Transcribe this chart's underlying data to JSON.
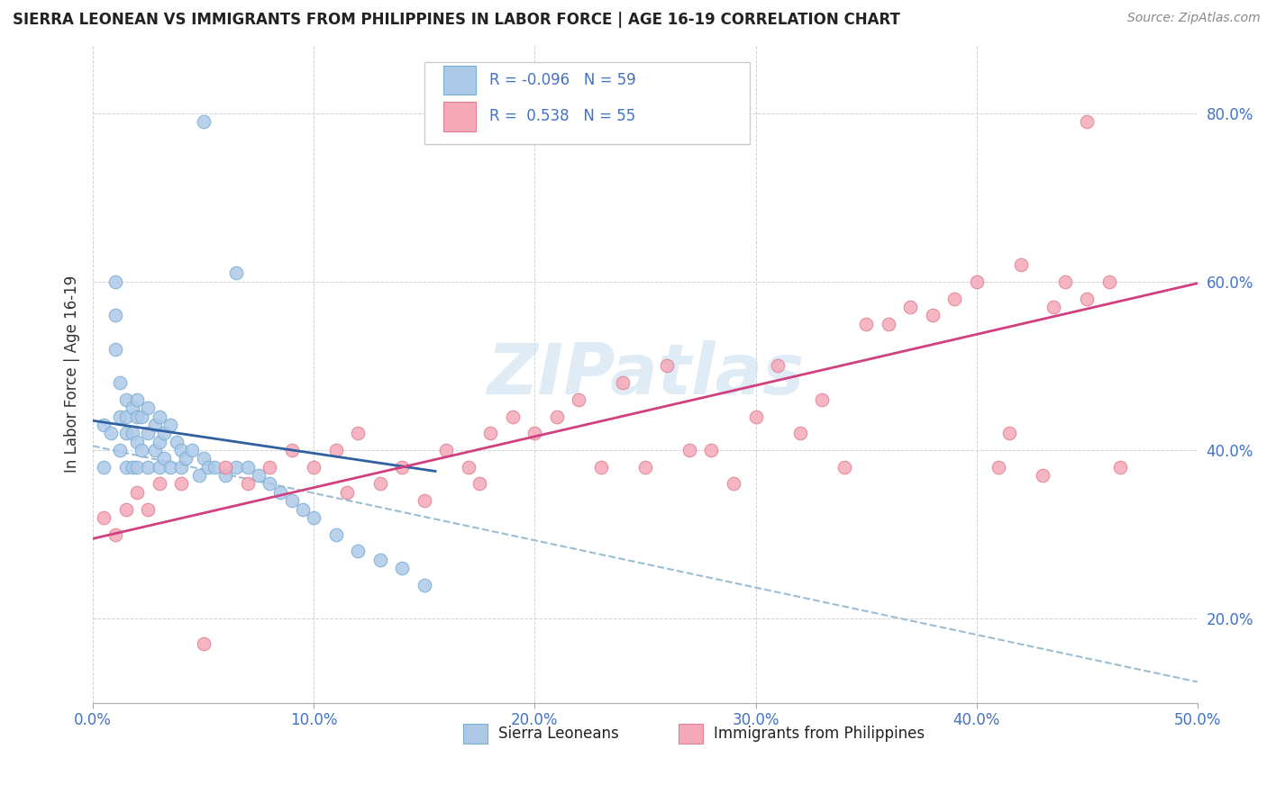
{
  "title": "SIERRA LEONEAN VS IMMIGRANTS FROM PHILIPPINES IN LABOR FORCE | AGE 16-19 CORRELATION CHART",
  "source": "Source: ZipAtlas.com",
  "ylabel": "In Labor Force | Age 16-19",
  "xlim": [
    0.0,
    0.5
  ],
  "ylim": [
    0.1,
    0.88
  ],
  "xticks": [
    0.0,
    0.1,
    0.2,
    0.3,
    0.4,
    0.5
  ],
  "xtick_labels": [
    "0.0%",
    "10.0%",
    "20.0%",
    "30.0%",
    "40.0%",
    "50.0%"
  ],
  "yticks": [
    0.2,
    0.4,
    0.6,
    0.8
  ],
  "ytick_labels": [
    "20.0%",
    "40.0%",
    "60.0%",
    "80.0%"
  ],
  "r_blue": -0.096,
  "n_blue": 59,
  "r_pink": 0.538,
  "n_pink": 55,
  "blue_dot_color": "#aec9e8",
  "blue_dot_edge": "#7aadd4",
  "pink_dot_color": "#f4a8b8",
  "pink_dot_edge": "#e08090",
  "blue_line_color": "#3060a0",
  "pink_line_color": "#d04080",
  "dashed_line_color": "#9bbdd4",
  "watermark": "ZIPatlas",
  "legend_label_blue": "Sierra Leoneans",
  "legend_label_pink": "Immigrants from Philippines",
  "blue_x": [
    0.005,
    0.005,
    0.008,
    0.01,
    0.01,
    0.01,
    0.012,
    0.012,
    0.012,
    0.015,
    0.015,
    0.015,
    0.015,
    0.018,
    0.018,
    0.018,
    0.02,
    0.02,
    0.02,
    0.02,
    0.022,
    0.022,
    0.025,
    0.025,
    0.025,
    0.028,
    0.028,
    0.03,
    0.03,
    0.03,
    0.032,
    0.032,
    0.035,
    0.035,
    0.038,
    0.04,
    0.04,
    0.042,
    0.045,
    0.048,
    0.05,
    0.052,
    0.055,
    0.06,
    0.065,
    0.07,
    0.075,
    0.08,
    0.085,
    0.09,
    0.095,
    0.1,
    0.11,
    0.12,
    0.13,
    0.14,
    0.15,
    0.05,
    0.065
  ],
  "blue_y": [
    0.43,
    0.38,
    0.42,
    0.6,
    0.56,
    0.52,
    0.48,
    0.44,
    0.4,
    0.46,
    0.44,
    0.42,
    0.38,
    0.45,
    0.42,
    0.38,
    0.46,
    0.44,
    0.41,
    0.38,
    0.44,
    0.4,
    0.45,
    0.42,
    0.38,
    0.43,
    0.4,
    0.44,
    0.41,
    0.38,
    0.42,
    0.39,
    0.43,
    0.38,
    0.41,
    0.4,
    0.38,
    0.39,
    0.4,
    0.37,
    0.39,
    0.38,
    0.38,
    0.37,
    0.38,
    0.38,
    0.37,
    0.36,
    0.35,
    0.34,
    0.33,
    0.32,
    0.3,
    0.28,
    0.27,
    0.26,
    0.24,
    0.79,
    0.61
  ],
  "pink_x": [
    0.005,
    0.01,
    0.015,
    0.02,
    0.025,
    0.03,
    0.04,
    0.05,
    0.06,
    0.07,
    0.08,
    0.09,
    0.1,
    0.11,
    0.115,
    0.12,
    0.13,
    0.14,
    0.15,
    0.16,
    0.17,
    0.175,
    0.18,
    0.19,
    0.2,
    0.21,
    0.22,
    0.23,
    0.24,
    0.25,
    0.26,
    0.27,
    0.28,
    0.29,
    0.3,
    0.31,
    0.32,
    0.33,
    0.34,
    0.35,
    0.36,
    0.37,
    0.38,
    0.39,
    0.4,
    0.41,
    0.415,
    0.42,
    0.43,
    0.435,
    0.44,
    0.45,
    0.46,
    0.465,
    0.45
  ],
  "pink_y": [
    0.32,
    0.3,
    0.33,
    0.35,
    0.33,
    0.36,
    0.36,
    0.17,
    0.38,
    0.36,
    0.38,
    0.4,
    0.38,
    0.4,
    0.35,
    0.42,
    0.36,
    0.38,
    0.34,
    0.4,
    0.38,
    0.36,
    0.42,
    0.44,
    0.42,
    0.44,
    0.46,
    0.38,
    0.48,
    0.38,
    0.5,
    0.4,
    0.4,
    0.36,
    0.44,
    0.5,
    0.42,
    0.46,
    0.38,
    0.55,
    0.55,
    0.57,
    0.56,
    0.58,
    0.6,
    0.38,
    0.42,
    0.62,
    0.37,
    0.57,
    0.6,
    0.58,
    0.6,
    0.38,
    0.79
  ],
  "blue_line_x0": 0.0,
  "blue_line_x1": 0.155,
  "blue_line_y0": 0.435,
  "blue_line_y1": 0.375,
  "pink_line_x0": 0.0,
  "pink_line_x1": 0.5,
  "pink_line_y0": 0.295,
  "pink_line_y1": 0.598,
  "dash_line_x0": 0.0,
  "dash_line_x1": 0.5,
  "dash_line_y0": 0.405,
  "dash_line_y1": 0.125
}
